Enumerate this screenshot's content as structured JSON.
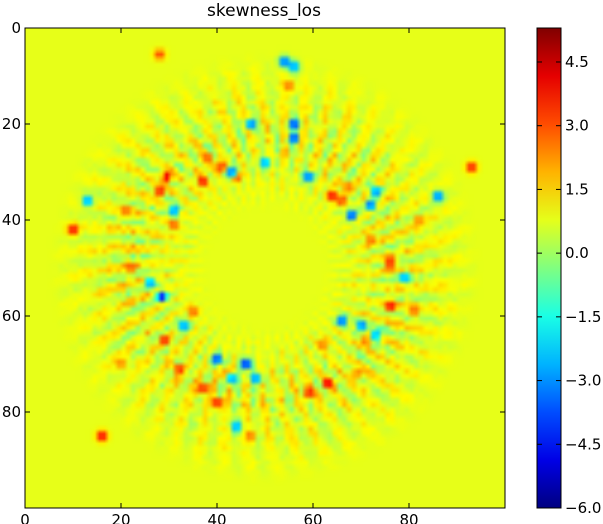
{
  "chart_data": {
    "type": "heatmap",
    "title": "skewness_los",
    "xlabel": "",
    "ylabel": "",
    "grid_size": [
      100,
      100
    ],
    "xlim": [
      0,
      100
    ],
    "ylim": [
      100,
      0
    ],
    "x_ticks": [
      0,
      20,
      40,
      60,
      80
    ],
    "x_tick_labels": [
      "0",
      "20",
      "40",
      "60",
      "80"
    ],
    "y_ticks": [
      0,
      20,
      40,
      60,
      80
    ],
    "y_tick_labels": [
      "0",
      "20",
      "40",
      "60",
      "80"
    ],
    "colormap": "jet",
    "colorbar": {
      "range": [
        -6.0,
        5.3
      ],
      "ticks": [
        4.5,
        3.0,
        1.5,
        0.0,
        -1.5,
        -3.0,
        -4.5,
        -6.0
      ],
      "tick_labels": [
        "4.5",
        "3.0",
        "1.5",
        "0.0",
        "−1.5",
        "−3.0",
        "−4.5",
        "−6.0"
      ]
    },
    "background_value": 0.8,
    "pattern": {
      "type": "radial-ring",
      "center": [
        50,
        50
      ],
      "inner_radius": 12,
      "peak_radius": 27,
      "outer_radius": 45,
      "spokes": 48
    },
    "hotspots": [
      {
        "x": 29.5,
        "y": 31,
        "v": 4.8
      },
      {
        "x": 28,
        "y": 34,
        "v": 4.5
      },
      {
        "x": 37,
        "y": 32,
        "v": 4.5
      },
      {
        "x": 41,
        "y": 29,
        "v": 4.2
      },
      {
        "x": 44,
        "y": 31,
        "v": 4.0
      },
      {
        "x": 40,
        "y": 78,
        "v": 4.6
      },
      {
        "x": 37,
        "y": 75,
        "v": 4.4
      },
      {
        "x": 32,
        "y": 71,
        "v": 4.0
      },
      {
        "x": 63,
        "y": 74,
        "v": 4.8
      },
      {
        "x": 59,
        "y": 76,
        "v": 4.2
      },
      {
        "x": 76,
        "y": 49,
        "v": 4.7
      },
      {
        "x": 76,
        "y": 58,
        "v": 4.4
      },
      {
        "x": 10,
        "y": 42,
        "v": 4.6
      },
      {
        "x": 16,
        "y": 85,
        "v": 4.8
      },
      {
        "x": 93,
        "y": 29,
        "v": 4.4
      },
      {
        "x": 64,
        "y": 35,
        "v": 4.5
      },
      {
        "x": 66,
        "y": 36,
        "v": 3.5
      },
      {
        "x": 29,
        "y": 65,
        "v": 4.0
      },
      {
        "x": 28,
        "y": 5.5,
        "v": 3.5
      },
      {
        "x": 38,
        "y": 27,
        "v": 3.2
      },
      {
        "x": 22,
        "y": 50,
        "v": 3.2
      },
      {
        "x": 67,
        "y": 33,
        "v": 3.0
      },
      {
        "x": 35,
        "y": 59,
        "v": 3.2
      },
      {
        "x": 62,
        "y": 66,
        "v": 3.0
      },
      {
        "x": 71,
        "y": 65,
        "v": 3.2
      },
      {
        "x": 81,
        "y": 59,
        "v": 3.0
      },
      {
        "x": 82,
        "y": 40,
        "v": 2.8
      },
      {
        "x": 21,
        "y": 38,
        "v": 3.0
      },
      {
        "x": 20,
        "y": 70,
        "v": 2.8
      },
      {
        "x": 47,
        "y": 85,
        "v": 3.0
      },
      {
        "x": 55,
        "y": 12,
        "v": 3.0
      },
      {
        "x": 31,
        "y": 41,
        "v": 3.2
      },
      {
        "x": 72,
        "y": 44,
        "v": 3.2
      },
      {
        "x": 69,
        "y": 72,
        "v": 3.0
      },
      {
        "x": 42,
        "y": 72,
        "v": 3.2
      },
      {
        "x": 56,
        "y": 20,
        "v": -5.2
      },
      {
        "x": 56,
        "y": 23,
        "v": -5.0
      },
      {
        "x": 43,
        "y": 30,
        "v": -5.0
      },
      {
        "x": 28.5,
        "y": 56,
        "v": -5.5
      },
      {
        "x": 40,
        "y": 69,
        "v": -5.3
      },
      {
        "x": 46,
        "y": 70,
        "v": -6.0
      },
      {
        "x": 66,
        "y": 61,
        "v": -5.0
      },
      {
        "x": 68,
        "y": 39,
        "v": -5.2
      },
      {
        "x": 72,
        "y": 37,
        "v": -4.6
      },
      {
        "x": 73,
        "y": 34,
        "v": -4.2
      },
      {
        "x": 59,
        "y": 31,
        "v": -4.8
      },
      {
        "x": 70,
        "y": 62,
        "v": -4.5
      },
      {
        "x": 47,
        "y": 20,
        "v": -4.5
      },
      {
        "x": 54,
        "y": 7,
        "v": -4.8
      },
      {
        "x": 86,
        "y": 35,
        "v": -4.5
      },
      {
        "x": 31,
        "y": 38,
        "v": -4.3
      },
      {
        "x": 13,
        "y": 36,
        "v": -4.0
      },
      {
        "x": 48,
        "y": 73,
        "v": -4.2
      },
      {
        "x": 33,
        "y": 62,
        "v": -4.2
      },
      {
        "x": 43,
        "y": 73,
        "v": -4.2
      },
      {
        "x": 44,
        "y": 83,
        "v": -3.8
      },
      {
        "x": 56,
        "y": 8,
        "v": -4.0
      },
      {
        "x": 50,
        "y": 28,
        "v": -3.8
      },
      {
        "x": 26,
        "y": 53,
        "v": -3.8
      },
      {
        "x": 73,
        "y": 64,
        "v": -3.8
      },
      {
        "x": 79,
        "y": 52,
        "v": -3.6
      }
    ]
  }
}
